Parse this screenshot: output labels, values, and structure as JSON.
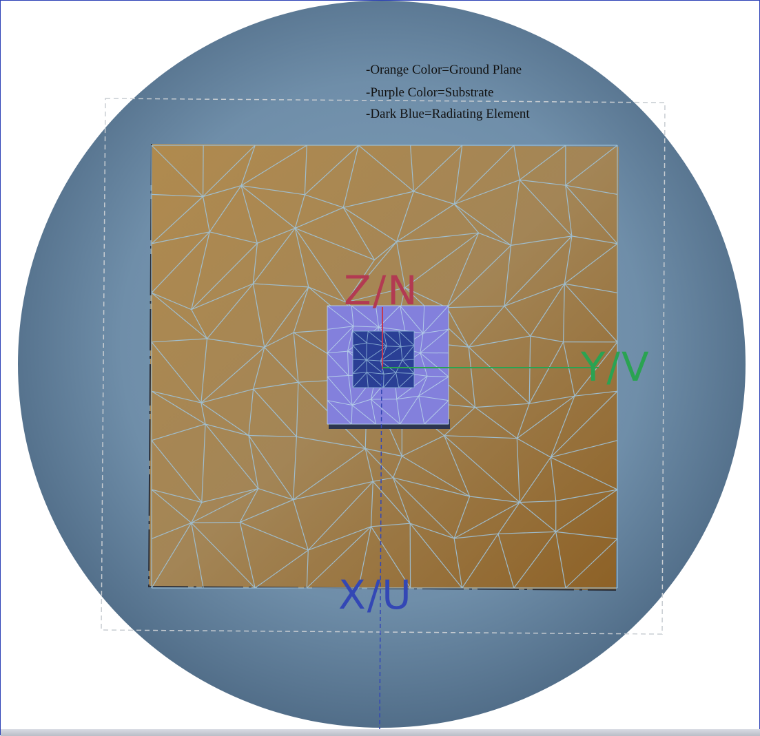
{
  "legend": {
    "lines": [
      "-Orange Color=Ground Plane",
      "-Purple Color=Substrate",
      "-Dark Blue=Radiating Element"
    ]
  },
  "axes": {
    "z_label": "Z/N",
    "y_label": "Y/V",
    "x_label": "X/U"
  },
  "colors": {
    "sphere": "#6f8ea9",
    "ground_plane": "#a6844d",
    "substrate": "#8380dc",
    "radiating_element": "#2a3f95",
    "mesh": "#9fc4dc",
    "z_axis": "#b23a52",
    "y_axis": "#2aa352",
    "x_axis": "#3347b5"
  }
}
